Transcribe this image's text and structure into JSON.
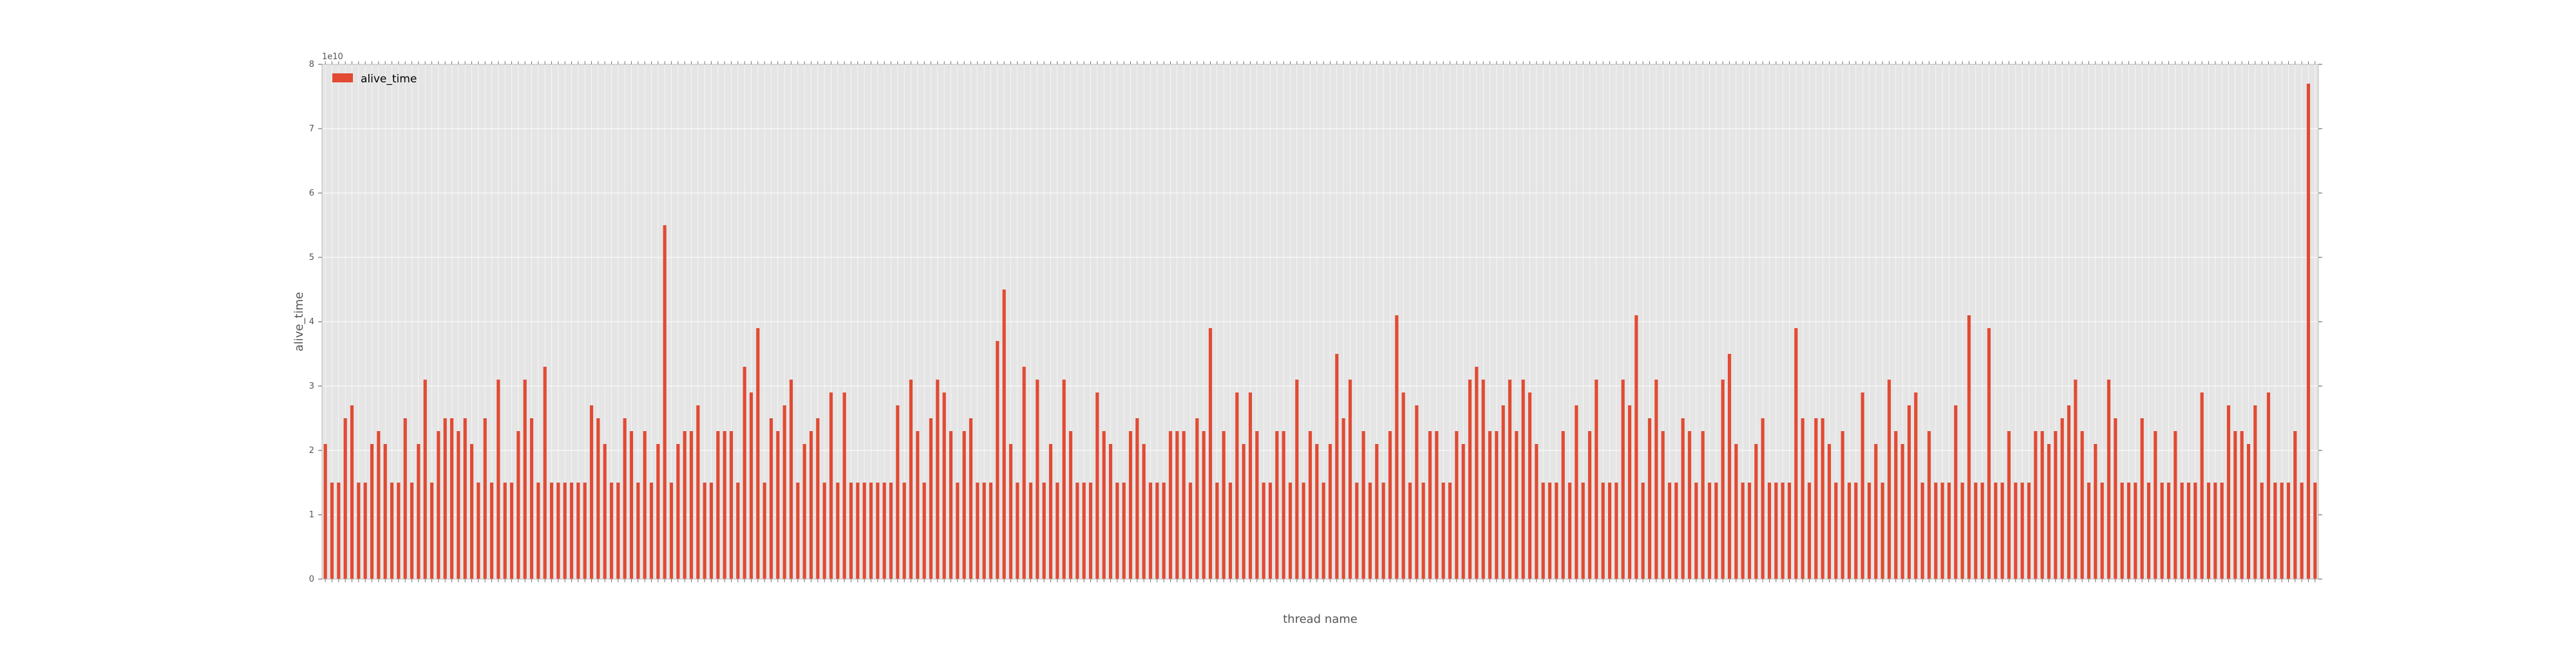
{
  "chart_data": {
    "type": "bar",
    "xlabel": "thread name",
    "ylabel": "alive_time",
    "y_offset_label": "1e10",
    "ylim": [
      0,
      8
    ],
    "y_ticks": [
      0,
      1,
      2,
      3,
      4,
      5,
      6,
      7,
      8
    ],
    "y_unit_multiplier": 10000000000,
    "grid": true,
    "legend_position": "top-left",
    "colors": {
      "bar": "#e24a33",
      "plot_bg": "#e5e5e5",
      "grid": "#ffffff",
      "text": "#555555"
    },
    "series": [
      {
        "name": "alive_time",
        "values": [
          2.1,
          1.5,
          1.5,
          2.5,
          2.7,
          1.5,
          1.5,
          2.1,
          2.3,
          2.1,
          1.5,
          1.5,
          2.5,
          1.5,
          2.1,
          3.1,
          1.5,
          2.3,
          2.5,
          2.5,
          2.3,
          2.5,
          2.1,
          1.5,
          2.5,
          1.5,
          3.1,
          1.5,
          1.5,
          2.3,
          3.1,
          2.5,
          1.5,
          3.3,
          1.5,
          1.5,
          1.5,
          1.5,
          1.5,
          1.5,
          2.7,
          2.5,
          2.1,
          1.5,
          1.5,
          2.5,
          2.3,
          1.5,
          2.3,
          1.5,
          2.1,
          5.5,
          1.5,
          2.1,
          2.3,
          2.3,
          2.7,
          1.5,
          1.5,
          2.3,
          2.3,
          2.3,
          1.5,
          3.3,
          2.9,
          3.9,
          1.5,
          2.5,
          2.3,
          2.7,
          3.1,
          1.5,
          2.1,
          2.3,
          2.5,
          1.5,
          2.9,
          1.5,
          2.9,
          1.5,
          1.5,
          1.5,
          1.5,
          1.5,
          1.5,
          1.5,
          2.7,
          1.5,
          3.1,
          2.3,
          1.5,
          2.5,
          3.1,
          2.9,
          2.3,
          1.5,
          2.3,
          2.5,
          1.5,
          1.5,
          1.5,
          3.7,
          4.5,
          2.1,
          1.5,
          3.3,
          1.5,
          3.1,
          1.5,
          2.1,
          1.5,
          3.1,
          2.3,
          1.5,
          1.5,
          1.5,
          2.9,
          2.3,
          2.1,
          1.5,
          1.5,
          2.3,
          2.5,
          2.1,
          1.5,
          1.5,
          1.5,
          2.3,
          2.3,
          2.3,
          1.5,
          2.5,
          2.3,
          3.9,
          1.5,
          2.3,
          1.5,
          2.9,
          2.1,
          2.9,
          2.3,
          1.5,
          1.5,
          2.3,
          2.3,
          1.5,
          3.1,
          1.5,
          2.3,
          2.1,
          1.5,
          2.1,
          3.5,
          2.5,
          3.1,
          1.5,
          2.3,
          1.5,
          2.1,
          1.5,
          2.3,
          4.1,
          2.9,
          1.5,
          2.7,
          1.5,
          2.3,
          2.3,
          1.5,
          1.5,
          2.3,
          2.1,
          3.1,
          3.3,
          3.1,
          2.3,
          2.3,
          2.7,
          3.1,
          2.3,
          3.1,
          2.9,
          2.1,
          1.5,
          1.5,
          1.5,
          2.3,
          1.5,
          2.7,
          1.5,
          2.3,
          3.1,
          1.5,
          1.5,
          1.5,
          3.1,
          2.7,
          4.1,
          1.5,
          2.5,
          3.1,
          2.3,
          1.5,
          1.5,
          2.5,
          2.3,
          1.5,
          2.3,
          1.5,
          1.5,
          3.1,
          3.5,
          2.1,
          1.5,
          1.5,
          2.1,
          2.5,
          1.5,
          1.5,
          1.5,
          1.5,
          3.9,
          2.5,
          1.5,
          2.5,
          2.5,
          2.1,
          1.5,
          2.3,
          1.5,
          1.5,
          2.9,
          1.5,
          2.1,
          1.5,
          3.1,
          2.3,
          2.1,
          2.7,
          2.9,
          1.5,
          2.3,
          1.5,
          1.5,
          1.5,
          2.7,
          1.5,
          4.1,
          1.5,
          1.5,
          3.9,
          1.5,
          1.5,
          2.3,
          1.5,
          1.5,
          1.5,
          2.3,
          2.3,
          2.1,
          2.3,
          2.5,
          2.7,
          3.1,
          2.3,
          1.5,
          2.1,
          1.5,
          3.1,
          2.5,
          1.5,
          1.5,
          1.5,
          2.5,
          1.5,
          2.3,
          1.5,
          1.5,
          2.3,
          1.5,
          1.5,
          1.5,
          2.9,
          1.5,
          1.5,
          1.5,
          2.7,
          2.3,
          2.3,
          2.1,
          2.7,
          1.5,
          2.9,
          1.5,
          1.5,
          1.5,
          2.3,
          1.5,
          7.7,
          1.5
        ]
      }
    ]
  }
}
